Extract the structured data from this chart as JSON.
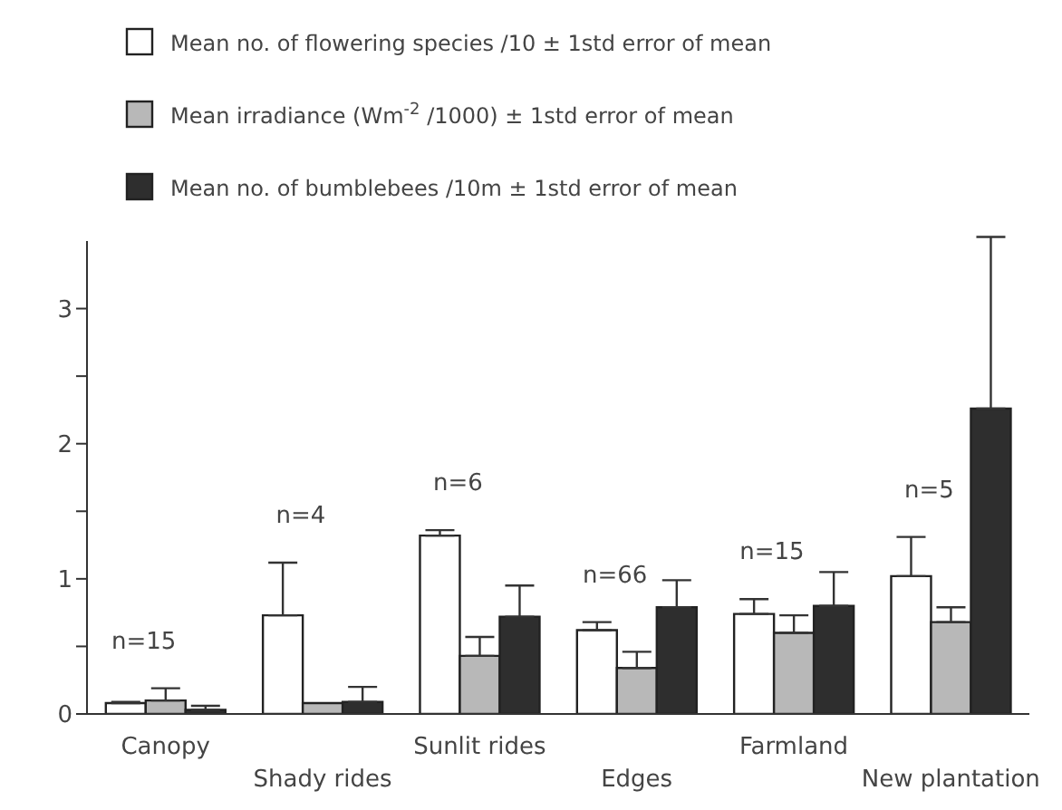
{
  "chart_data": {
    "type": "bar",
    "categories": [
      "Canopy",
      "Shady rides",
      "Sunlit rides",
      "Edges",
      "Farmland",
      "New plantation"
    ],
    "series": [
      {
        "name": "Mean no. of flowering species /10 ± 1std error of mean",
        "color": "#ffffff",
        "values": [
          0.08,
          0.73,
          1.32,
          0.62,
          0.74,
          1.02
        ],
        "errors": [
          [
            0.08,
            0.09
          ],
          [
            0.73,
            1.12
          ],
          [
            1.32,
            1.36
          ],
          [
            0.62,
            0.68
          ],
          [
            0.74,
            0.85
          ],
          [
            1.02,
            1.31
          ]
        ]
      },
      {
        "name": "Mean irradiance (Wm$^{-2}$ /1000) ± 1std error of mean",
        "color": "#b8b8b8",
        "values": [
          0.1,
          0.08,
          0.43,
          0.34,
          0.6,
          0.68
        ],
        "errors": [
          [
            0.1,
            0.19
          ],
          null,
          [
            0.43,
            0.57
          ],
          [
            0.34,
            0.46
          ],
          [
            0.6,
            0.73
          ],
          [
            0.68,
            0.79
          ]
        ]
      },
      {
        "name": "Mean no. of bumblebees /10m ± 1std error of mean",
        "color": "#2e2e2e",
        "values": [
          0.03,
          0.09,
          0.72,
          0.79,
          0.8,
          2.26
        ],
        "errors": [
          [
            0.03,
            0.06
          ],
          [
            0.09,
            0.2
          ],
          [
            0.72,
            0.95
          ],
          [
            0.79,
            0.99
          ],
          [
            0.8,
            1.05
          ],
          [
            2.26,
            3.53
          ]
        ]
      }
    ],
    "ylim": [
      0,
      3.5
    ],
    "yticks": [
      0,
      {
        "value": 0.5,
        "label": null
      },
      1,
      {
        "value": 1.5,
        "label": null
      },
      2,
      {
        "value": 2.5,
        "label": null
      },
      3
    ],
    "legend": "top",
    "grid": false,
    "annotations": [
      "n=15",
      "n=4",
      "n=6",
      "n=66",
      "n=15",
      "n=5"
    ]
  }
}
